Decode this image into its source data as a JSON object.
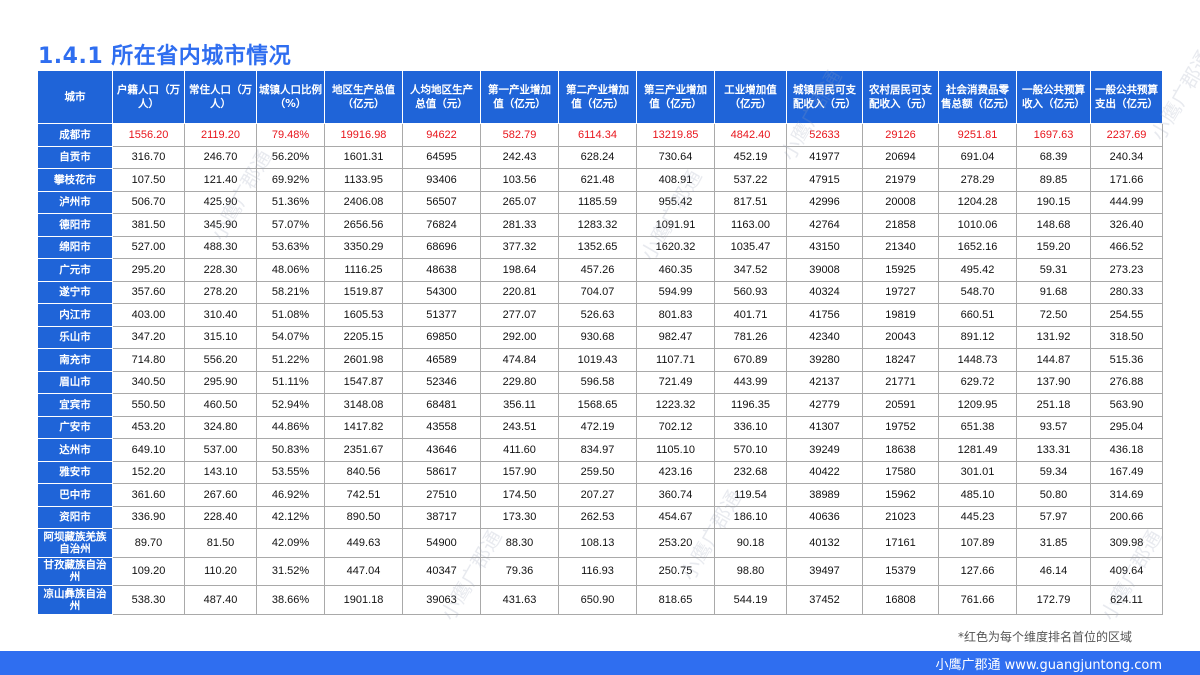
{
  "title": "1.4.1 所在省内城市情况",
  "headers": [
    "城市",
    "户籍人口（万人）",
    "常住人口（万人）",
    "城镇人口比例（%）",
    "地区生产总值（亿元）",
    "人均地区生产总值（元）",
    "第一产业增加值（亿元）",
    "第二产业增加值（亿元）",
    "第三产业增加值（亿元）",
    "工业增加值（亿元）",
    "城镇居民可支配收入（元）",
    "农村居民可支配收入（元）",
    "社会消费品零售总额（亿元）",
    "一般公共预算收入（亿元）",
    "一般公共预算支出（亿元）"
  ],
  "rows": [
    {
      "city": "成都市",
      "cells": [
        "1556.20",
        "2119.20",
        "79.48%",
        "19916.98",
        "94622",
        "582.79",
        "6114.34",
        "13219.85",
        "4842.40",
        "52633",
        "29126",
        "9251.81",
        "1697.63",
        "2237.69"
      ],
      "red": [
        0,
        1,
        2,
        3,
        4,
        5,
        6,
        7,
        8,
        9,
        10,
        11,
        12,
        13
      ]
    },
    {
      "city": "自贡市",
      "cells": [
        "316.70",
        "246.70",
        "56.20%",
        "1601.31",
        "64595",
        "242.43",
        "628.24",
        "730.64",
        "452.19",
        "41977",
        "20694",
        "691.04",
        "68.39",
        "240.34"
      ],
      "red": []
    },
    {
      "city": "攀枝花市",
      "cells": [
        "107.50",
        "121.40",
        "69.92%",
        "1133.95",
        "93406",
        "103.56",
        "621.48",
        "408.91",
        "537.22",
        "47915",
        "21979",
        "278.29",
        "89.85",
        "171.66"
      ],
      "red": []
    },
    {
      "city": "泸州市",
      "cells": [
        "506.70",
        "425.90",
        "51.36%",
        "2406.08",
        "56507",
        "265.07",
        "1185.59",
        "955.42",
        "817.51",
        "42996",
        "20008",
        "1204.28",
        "190.15",
        "444.99"
      ],
      "red": []
    },
    {
      "city": "德阳市",
      "cells": [
        "381.50",
        "345.90",
        "57.07%",
        "2656.56",
        "76824",
        "281.33",
        "1283.32",
        "1091.91",
        "1163.00",
        "42764",
        "21858",
        "1010.06",
        "148.68",
        "326.40"
      ],
      "red": []
    },
    {
      "city": "绵阳市",
      "cells": [
        "527.00",
        "488.30",
        "53.63%",
        "3350.29",
        "68696",
        "377.32",
        "1352.65",
        "1620.32",
        "1035.47",
        "43150",
        "21340",
        "1652.16",
        "159.20",
        "466.52"
      ],
      "red": []
    },
    {
      "city": "广元市",
      "cells": [
        "295.20",
        "228.30",
        "48.06%",
        "1116.25",
        "48638",
        "198.64",
        "457.26",
        "460.35",
        "347.52",
        "39008",
        "15925",
        "495.42",
        "59.31",
        "273.23"
      ],
      "red": []
    },
    {
      "city": "遂宁市",
      "cells": [
        "357.60",
        "278.20",
        "58.21%",
        "1519.87",
        "54300",
        "220.81",
        "704.07",
        "594.99",
        "560.93",
        "40324",
        "19727",
        "548.70",
        "91.68",
        "280.33"
      ],
      "red": []
    },
    {
      "city": "内江市",
      "cells": [
        "403.00",
        "310.40",
        "51.08%",
        "1605.53",
        "51377",
        "277.07",
        "526.63",
        "801.83",
        "401.71",
        "41756",
        "19819",
        "660.51",
        "72.50",
        "254.55"
      ],
      "red": []
    },
    {
      "city": "乐山市",
      "cells": [
        "347.20",
        "315.10",
        "54.07%",
        "2205.15",
        "69850",
        "292.00",
        "930.68",
        "982.47",
        "781.26",
        "42340",
        "20043",
        "891.12",
        "131.92",
        "318.50"
      ],
      "red": []
    },
    {
      "city": "南充市",
      "cells": [
        "714.80",
        "556.20",
        "51.22%",
        "2601.98",
        "46589",
        "474.84",
        "1019.43",
        "1107.71",
        "670.89",
        "39280",
        "18247",
        "1448.73",
        "144.87",
        "515.36"
      ],
      "red": []
    },
    {
      "city": "眉山市",
      "cells": [
        "340.50",
        "295.90",
        "51.11%",
        "1547.87",
        "52346",
        "229.80",
        "596.58",
        "721.49",
        "443.99",
        "42137",
        "21771",
        "629.72",
        "137.90",
        "276.88"
      ],
      "red": []
    },
    {
      "city": "宜宾市",
      "cells": [
        "550.50",
        "460.50",
        "52.94%",
        "3148.08",
        "68481",
        "356.11",
        "1568.65",
        "1223.32",
        "1196.35",
        "42779",
        "20591",
        "1209.95",
        "251.18",
        "563.90"
      ],
      "red": []
    },
    {
      "city": "广安市",
      "cells": [
        "453.20",
        "324.80",
        "44.86%",
        "1417.82",
        "43558",
        "243.51",
        "472.19",
        "702.12",
        "336.10",
        "41307",
        "19752",
        "651.38",
        "93.57",
        "295.04"
      ],
      "red": []
    },
    {
      "city": "达州市",
      "cells": [
        "649.10",
        "537.00",
        "50.83%",
        "2351.67",
        "43646",
        "411.60",
        "834.97",
        "1105.10",
        "570.10",
        "39249",
        "18638",
        "1281.49",
        "133.31",
        "436.18"
      ],
      "red": []
    },
    {
      "city": "雅安市",
      "cells": [
        "152.20",
        "143.10",
        "53.55%",
        "840.56",
        "58617",
        "157.90",
        "259.50",
        "423.16",
        "232.68",
        "40422",
        "17580",
        "301.01",
        "59.34",
        "167.49"
      ],
      "red": []
    },
    {
      "city": "巴中市",
      "cells": [
        "361.60",
        "267.60",
        "46.92%",
        "742.51",
        "27510",
        "174.50",
        "207.27",
        "360.74",
        "119.54",
        "38989",
        "15962",
        "485.10",
        "50.80",
        "314.69"
      ],
      "red": []
    },
    {
      "city": "资阳市",
      "cells": [
        "336.90",
        "228.40",
        "42.12%",
        "890.50",
        "38717",
        "173.30",
        "262.53",
        "454.67",
        "186.10",
        "40636",
        "21023",
        "445.23",
        "57.97",
        "200.66"
      ],
      "red": []
    },
    {
      "city": "阿坝藏族羌族自治州",
      "cells": [
        "89.70",
        "81.50",
        "42.09%",
        "449.63",
        "54900",
        "88.30",
        "108.13",
        "253.20",
        "90.18",
        "40132",
        "17161",
        "107.89",
        "31.85",
        "309.98"
      ],
      "red": []
    },
    {
      "city": "甘孜藏族自治州",
      "cells": [
        "109.20",
        "110.20",
        "31.52%",
        "447.04",
        "40347",
        "79.36",
        "116.93",
        "250.75",
        "98.80",
        "39497",
        "15379",
        "127.66",
        "46.14",
        "409.64"
      ],
      "red": []
    },
    {
      "city": "凉山彝族自治州",
      "cells": [
        "538.30",
        "487.40",
        "38.66%",
        "1901.18",
        "39063",
        "431.63",
        "650.90",
        "818.65",
        "544.19",
        "37452",
        "16808",
        "761.66",
        "172.79",
        "624.11"
      ],
      "red": []
    }
  ],
  "note": "*红色为每个维度排名首位的区域",
  "footer": {
    "brand": "小鹰广郡通 www.guangjuntong.com"
  },
  "watermark": "小鹰广郡通",
  "colors": {
    "accent": "#2F6EF0",
    "header_bg": "#1F64D8",
    "highlight": "#E8141B"
  }
}
